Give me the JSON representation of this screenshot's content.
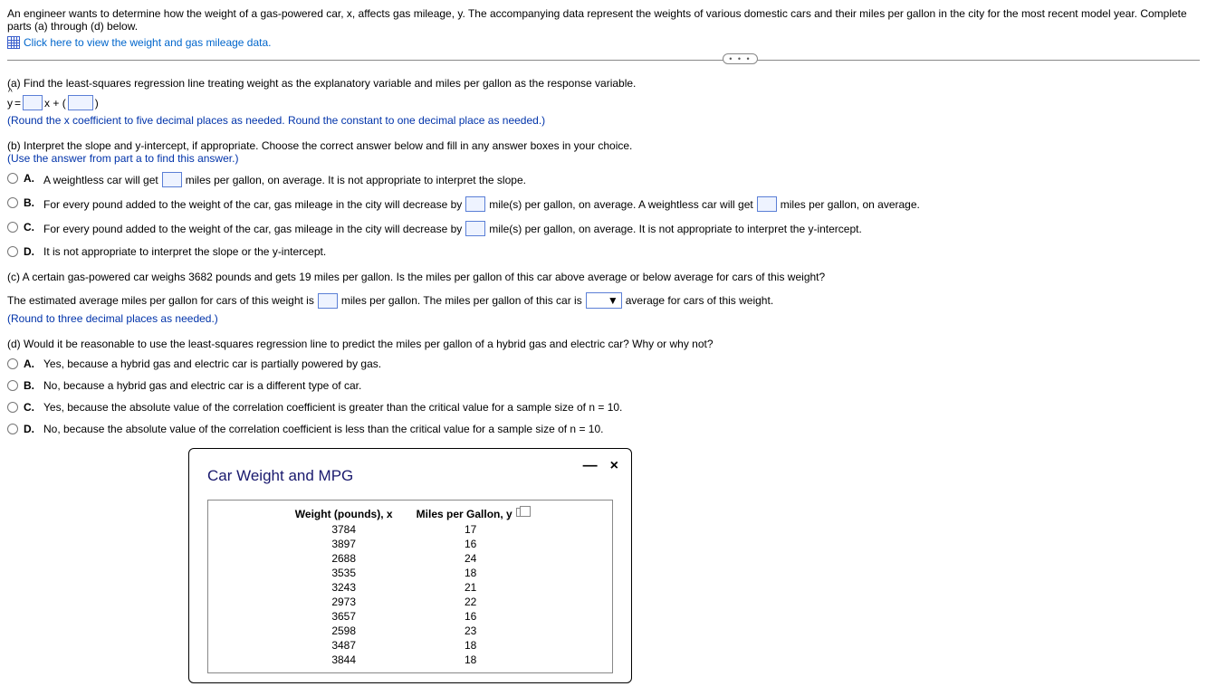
{
  "intro": "An engineer wants to determine how the weight of a gas-powered car, x, affects gas mileage, y. The accompanying data represent the weights of various domestic cars and their miles per gallon in the city for the most recent model year. Complete parts (a) through (d) below.",
  "data_link": "Click here to view the weight and gas mileage data.",
  "badge_dots": "• • •",
  "part_a": {
    "prompt": "(a) Find the least-squares regression line treating weight as the explanatory variable and miles per gallon as the response variable.",
    "eq_y": "y",
    "eq_eq": " = ",
    "eq_x": "x + (",
    "eq_close": ")",
    "note": "(Round the x coefficient to five decimal places as needed. Round the constant to one decimal place as needed.)"
  },
  "part_b": {
    "prompt": "(b) Interpret the slope and y-intercept, if appropriate. Choose the correct answer below and fill in any answer boxes in your choice.",
    "note": "(Use the answer from part a to find this answer.)",
    "options": {
      "A": {
        "t1": "A weightless car will get",
        "t2": "miles per gallon, on average. It is not appropriate to interpret the slope."
      },
      "B": {
        "t1": "For every pound added to the weight of the car, gas mileage in the city will decrease by",
        "t2": "mile(s) per gallon, on average. A weightless car will get",
        "t3": "miles per gallon, on average."
      },
      "C": {
        "t1": "For every pound added to the weight of the car, gas mileage in the city will decrease by",
        "t2": "mile(s) per gallon, on average. It is not appropriate to interpret the y-intercept."
      },
      "D": {
        "t1": "It is not appropriate to interpret the slope or the y-intercept."
      }
    }
  },
  "part_c": {
    "prompt": "(c) A certain gas-powered car weighs 3682 pounds and gets 19 miles per gallon. Is the miles per gallon of this car above average or below average for cars of this weight?",
    "t1": "The estimated average miles per gallon for cars of this weight is",
    "t2": "miles per gallon. The miles per gallon of this car is",
    "t3": "average for cars of this weight.",
    "note": "(Round to three decimal places as needed.)",
    "select_caret": "▼"
  },
  "part_d": {
    "prompt": "(d) Would it be reasonable to use the least-squares regression line to predict the miles per gallon of a hybrid gas and electric car? Why or why not?",
    "options": {
      "A": "Yes, because a hybrid gas and electric car is partially powered by gas.",
      "B": "No, because a hybrid gas and electric car is a different type of car.",
      "C": "Yes, because the absolute value of the correlation coefficient is greater than the critical value for a sample size of n = 10.",
      "D": "No, because the absolute value of the correlation coefficient is less than the critical value for a sample size of n = 10."
    }
  },
  "popup": {
    "title": "Car Weight and MPG",
    "minimize": "—",
    "close": "×",
    "col1": "Weight (pounds), x",
    "col2": "Miles per Gallon, y",
    "rows": [
      [
        "3784",
        "17"
      ],
      [
        "3897",
        "16"
      ],
      [
        "2688",
        "24"
      ],
      [
        "3535",
        "18"
      ],
      [
        "3243",
        "21"
      ],
      [
        "2973",
        "22"
      ],
      [
        "3657",
        "16"
      ],
      [
        "2598",
        "23"
      ],
      [
        "3487",
        "18"
      ],
      [
        "3844",
        "18"
      ]
    ]
  },
  "labels": {
    "A": "A.",
    "B": "B.",
    "C": "C.",
    "D": "D."
  }
}
